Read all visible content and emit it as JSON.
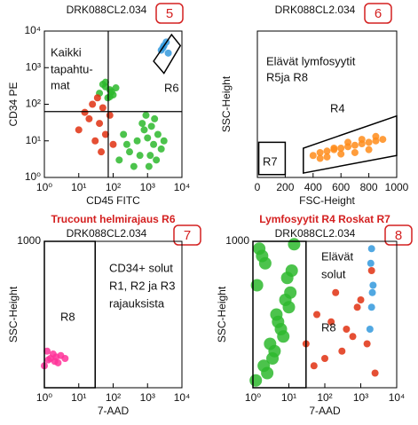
{
  "chart_data": [
    {
      "type": "scatter",
      "title": "DRK088CL2.034",
      "badge": "5",
      "xlabel": "CD45 FITC",
      "ylabel": "CD34 PE",
      "xscale": "log",
      "yscale": "log",
      "xlim": [
        1,
        10000
      ],
      "ylim": [
        1,
        10000
      ],
      "xticks": [
        {
          "value": 1,
          "label": "10⁰"
        },
        {
          "value": 10,
          "label": "10¹"
        },
        {
          "value": 100,
          "label": "10²"
        },
        {
          "value": 1000,
          "label": "10³"
        },
        {
          "value": 10000,
          "label": "10⁴"
        }
      ],
      "yticks": [
        {
          "value": 1,
          "label": "10⁰"
        },
        {
          "value": 10,
          "label": "10¹"
        },
        {
          "value": 100,
          "label": "10²"
        },
        {
          "value": 1000,
          "label": "10³"
        },
        {
          "value": 10000,
          "label": "10⁴"
        }
      ],
      "quadrant": {
        "x": 72,
        "y": 63
      },
      "annotations": [
        "Kaikki",
        "tapahtu-",
        "mat",
        "R6"
      ],
      "gates": [
        {
          "x": [
            1500,
            5000,
            9000,
            3000
          ],
          "y": [
            1500,
            8000,
            4000,
            700
          ]
        }
      ],
      "series": [
        {
          "color": "#2db82d",
          "x": [
            150,
            300,
            500,
            800,
            1200,
            1500,
            2000,
            2500,
            400,
            700,
            1000,
            1800,
            250,
            600,
            900,
            1300,
            3000,
            200,
            1100,
            1600
          ],
          "values": [
            3,
            5,
            10,
            20,
            4,
            8,
            15,
            6,
            2,
            30,
            12,
            3,
            8,
            4,
            50,
            25,
            10,
            15,
            2,
            40
          ]
        },
        {
          "color": "#2db82d",
          "x": [
            40,
            60,
            80,
            100,
            50,
            70,
            90,
            120,
            60,
            80
          ],
          "values": [
            200,
            300,
            250,
            180,
            350,
            150,
            220,
            280,
            400,
            160
          ]
        },
        {
          "color": "#e03010",
          "x": [
            10,
            20,
            30,
            50,
            15,
            25,
            40,
            60,
            80,
            100,
            35,
            45
          ],
          "values": [
            20,
            40,
            10,
            80,
            60,
            100,
            30,
            15,
            50,
            8,
            150,
            5
          ]
        },
        {
          "color": "#3399dd",
          "x": [
            2500,
            3000,
            3500,
            2800,
            4000
          ],
          "values": [
            3000,
            4000,
            5000,
            3500,
            2500
          ]
        }
      ]
    },
    {
      "type": "scatter",
      "title": "DRK088CL2.034",
      "badge": "6",
      "xlabel": "FSC-Height",
      "ylabel": "SSC-Height",
      "xscale": "linear",
      "yscale": "linear",
      "xlim": [
        0,
        1000
      ],
      "ylim": [
        0,
        1000
      ],
      "xticks": [
        0,
        200,
        400,
        600,
        800,
        1000
      ],
      "yticks": [],
      "annotations": [
        "Elävät lymfosyytit",
        "R5ja R8",
        "R4",
        "R7"
      ],
      "gates": [
        {
          "x": [
            10,
            200,
            200,
            10
          ],
          "y": [
            20,
            20,
            240,
            240
          ]
        },
        {
          "x": [
            330,
            1000,
            1000,
            330
          ],
          "y": [
            30,
            150,
            420,
            200
          ]
        }
      ],
      "series": [
        {
          "color": "#ff8c1a",
          "x": [
            400,
            450,
            500,
            550,
            600,
            650,
            700,
            750,
            800,
            850,
            900,
            500,
            600,
            700,
            800,
            450,
            550,
            650,
            750,
            850
          ],
          "values": [
            150,
            170,
            180,
            190,
            200,
            210,
            220,
            230,
            240,
            250,
            260,
            140,
            160,
            170,
            190,
            130,
            200,
            240,
            260,
            280
          ]
        }
      ]
    },
    {
      "type": "scatter",
      "heading": "Trucount helmirajaus R6",
      "title": "DRK088CL2.034",
      "badge": "7",
      "xlabel": "7-AAD",
      "ylabel": "SSC-Height",
      "xscale": "log",
      "yscale": "linear",
      "xlim": [
        1,
        10000
      ],
      "ylim": [
        0,
        1000
      ],
      "xticks": [
        {
          "value": 1,
          "label": "10⁰"
        },
        {
          "value": 10,
          "label": "10¹"
        },
        {
          "value": 100,
          "label": "10²"
        },
        {
          "value": 1000,
          "label": "10³"
        },
        {
          "value": 10000,
          "label": "10⁴"
        }
      ],
      "yticks": [
        1000
      ],
      "annotations": [
        "CD34+ solut",
        "R1, R2 ja R3",
        "rajauksista",
        "R8"
      ],
      "gates": [
        {
          "x": [
            1,
            30,
            30,
            1
          ],
          "y": [
            0,
            0,
            1000,
            1000
          ]
        }
      ],
      "series": [
        {
          "color": "#ff3399",
          "x": [
            1,
            1.5,
            2,
            3,
            1.2,
            2.5,
            1.8,
            1.3,
            2.2,
            4
          ],
          "values": [
            150,
            200,
            180,
            220,
            250,
            170,
            230,
            190,
            210,
            200
          ]
        }
      ]
    },
    {
      "type": "scatter",
      "heading": "Lymfosyytit R4 Roskat R7",
      "title": "DRK088CL2.034",
      "badge": "8",
      "xlabel": "7-AAD",
      "ylabel": "SSC-Height",
      "xscale": "log",
      "yscale": "linear",
      "xlim": [
        1,
        10000
      ],
      "ylim": [
        0,
        1000
      ],
      "xticks": [
        {
          "value": 1,
          "label": "10⁰"
        },
        {
          "value": 10,
          "label": "10¹"
        },
        {
          "value": 100,
          "label": "10²"
        },
        {
          "value": 1000,
          "label": "10³"
        },
        {
          "value": 10000,
          "label": "10⁴"
        }
      ],
      "yticks": [
        1000
      ],
      "annotations": [
        "Elävät",
        "solut",
        "R8"
      ],
      "gates": [
        {
          "x": [
            1,
            30,
            30,
            1
          ],
          "y": [
            0,
            0,
            1000,
            1000
          ]
        }
      ],
      "series": [
        {
          "color": "#2db82d",
          "x": [
            1.2,
            2,
            3,
            5,
            8,
            12,
            1.5,
            2.5,
            4,
            6,
            10,
            1.3,
            2.2,
            3.5,
            7,
            11,
            1.8,
            4.5,
            9,
            14
          ],
          "values": [
            50,
            150,
            300,
            450,
            600,
            800,
            950,
            100,
            250,
            400,
            550,
            700,
            850,
            200,
            350,
            650,
            900,
            500,
            750,
            980
          ]
        },
        {
          "color": "#e03010",
          "x": [
            30,
            60,
            100,
            200,
            400,
            800,
            1500,
            2000,
            50,
            150,
            300,
            600,
            1000,
            2500
          ],
          "values": [
            300,
            500,
            200,
            650,
            400,
            550,
            300,
            800,
            150,
            450,
            250,
            350,
            600,
            100
          ]
        },
        {
          "color": "#3399dd",
          "x": [
            1800,
            2000,
            2200,
            1900,
            2100,
            2000
          ],
          "values": [
            400,
            550,
            700,
            850,
            650,
            950
          ]
        }
      ]
    }
  ]
}
